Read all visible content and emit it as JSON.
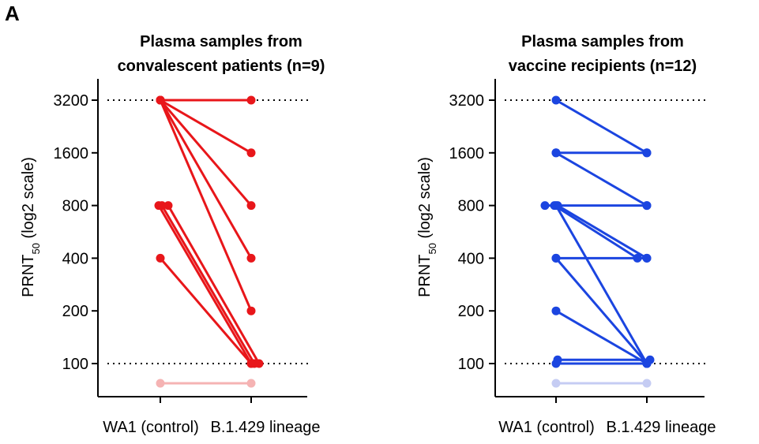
{
  "panel_label": "A",
  "chart_data": [
    {
      "type": "line",
      "title_line1": "Plasma samples from",
      "title_line2": "convalescent patients (n=9)",
      "ylabel_main": "PRNT",
      "ylabel_sub": "50",
      "ylabel_suffix": " (log2 scale)",
      "yscale": "log2",
      "yticks": [
        100,
        200,
        400,
        800,
        1600,
        3200
      ],
      "ytick_labels": [
        "100",
        "200",
        "400",
        "800",
        "1600",
        "3200"
      ],
      "reference_lines": [
        3200,
        100
      ],
      "categories": [
        "WA1 (control)",
        "B.1.429 lineage"
      ],
      "color": "#e8161a",
      "below_limit_color": "#f5b3b3",
      "below_limit_pairs": [
        {
          "from": 50,
          "to": 50
        }
      ],
      "pairs": [
        {
          "from": 3200,
          "to": 3200
        },
        {
          "from": 3200,
          "to": 1600
        },
        {
          "from": 3200,
          "to": 800
        },
        {
          "from": 3200,
          "to": 400
        },
        {
          "from": 3200,
          "to": 200
        },
        {
          "from": 800,
          "to": 100
        },
        {
          "from": 800,
          "to": 100
        },
        {
          "from": 800,
          "to": 100
        },
        {
          "from": 400,
          "to": 100
        }
      ]
    },
    {
      "type": "line",
      "title_line1": "Plasma samples from",
      "title_line2": "vaccine recipients (n=12)",
      "ylabel_main": "PRNT",
      "ylabel_sub": "50",
      "ylabel_suffix": " (log2 scale)",
      "yscale": "log2",
      "yticks": [
        100,
        200,
        400,
        800,
        1600,
        3200
      ],
      "ytick_labels": [
        "100",
        "200",
        "400",
        "800",
        "1600",
        "3200"
      ],
      "reference_lines": [
        3200,
        100
      ],
      "categories": [
        "WA1 (control)",
        "B.1.429 lineage"
      ],
      "color": "#1b45e0",
      "below_limit_color": "#c5ccf3",
      "below_limit_pairs": [
        {
          "from": 50,
          "to": 50
        }
      ],
      "pairs": [
        {
          "from": 3200,
          "to": 1600
        },
        {
          "from": 1600,
          "to": 1600
        },
        {
          "from": 1600,
          "to": 800
        },
        {
          "from": 800,
          "to": 800
        },
        {
          "from": 800,
          "to": 400
        },
        {
          "from": 800,
          "to": 400
        },
        {
          "from": 800,
          "to": 100
        },
        {
          "from": 400,
          "to": 400
        },
        {
          "from": 400,
          "to": 100
        },
        {
          "from": 200,
          "to": 100
        },
        {
          "from": 105,
          "to": 105
        },
        {
          "from": 100,
          "to": 100
        }
      ]
    }
  ]
}
